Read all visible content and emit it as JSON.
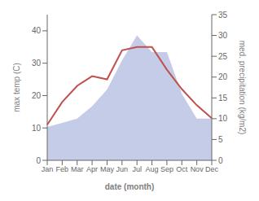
{
  "chart_data": {
    "type": "line",
    "xlabel": "date (month)",
    "ylabel": "max temp (C)",
    "y2label": "med. precipitation (kg/m2)",
    "categories": [
      "Jan",
      "Feb",
      "Mar",
      "Apr",
      "May",
      "Jun",
      "Jul",
      "Aug",
      "Sep",
      "Oct",
      "Nov",
      "Dec"
    ],
    "series": [
      {
        "type": "area",
        "axis": "y2",
        "color": "#c5cce8",
        "values": [
          8,
          9,
          10,
          13,
          17,
          24,
          30,
          26,
          26,
          16,
          10,
          10
        ]
      },
      {
        "type": "line",
        "axis": "y",
        "color": "#c0504d",
        "values": [
          11,
          18,
          23,
          26,
          25,
          34,
          35,
          35,
          28,
          22,
          17,
          13
        ]
      }
    ],
    "ylim": [
      0,
      45
    ],
    "yticks": [
      0,
      10,
      20,
      30,
      40
    ],
    "y2lim": [
      0,
      35
    ],
    "y2ticks": [
      0,
      5,
      10,
      15,
      20,
      25,
      30,
      35
    ],
    "grid": false
  }
}
